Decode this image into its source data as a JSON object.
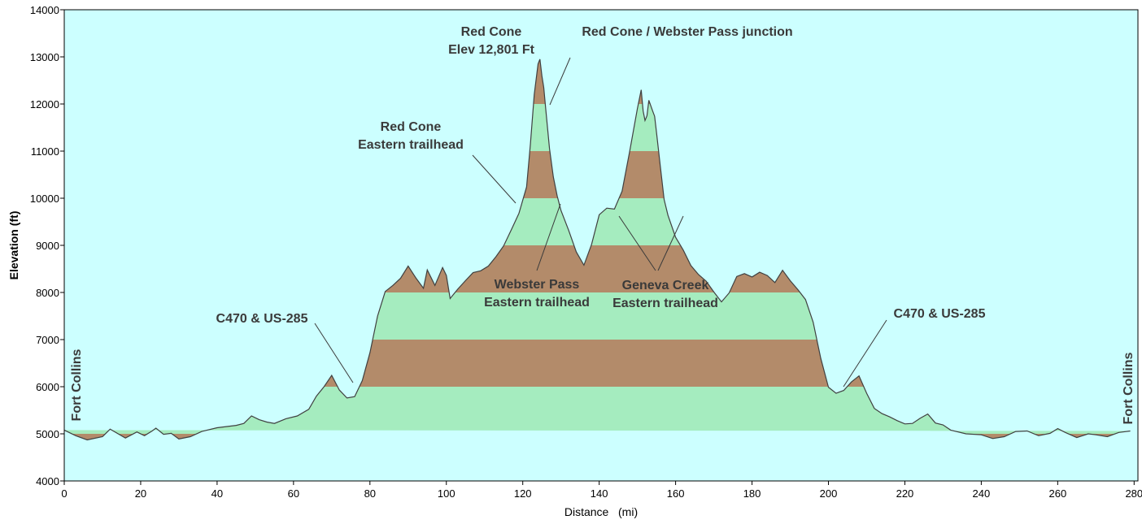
{
  "chart_data": {
    "type": "area",
    "xlabel": "Distance   (mi)",
    "ylabel": "Elevation (ft)",
    "xlim": [
      0,
      281
    ],
    "ylim": [
      4000,
      14000
    ],
    "x_ticks": [
      0,
      20,
      40,
      60,
      80,
      100,
      120,
      140,
      160,
      180,
      200,
      220,
      240,
      260,
      280
    ],
    "y_ticks": [
      4000,
      5000,
      6000,
      7000,
      8000,
      9000,
      10000,
      11000,
      12000,
      13000,
      14000
    ],
    "grid": false,
    "legend": "none",
    "colors": {
      "plot_background": "#ccffff",
      "band_brown": "#b38b6a",
      "band_green": "#a5ecbf",
      "outline": "#404040",
      "annotation_text": "#3a3a3a"
    },
    "band_interval_ft": 1000,
    "profile": {
      "x": [
        0,
        3,
        6,
        10,
        12,
        16,
        19,
        21,
        23,
        24,
        26,
        28,
        30,
        33,
        36,
        40,
        45,
        47,
        49,
        51,
        53,
        55,
        58,
        61,
        64,
        66,
        68,
        70,
        72,
        74,
        76,
        78,
        80,
        82,
        84,
        86,
        88,
        90,
        92,
        94,
        95,
        97,
        99,
        100,
        101,
        103,
        105,
        107,
        109,
        111,
        113,
        115,
        117,
        119,
        121,
        122,
        123,
        124,
        124.5,
        125,
        125.5,
        126,
        127,
        128,
        129,
        130,
        132,
        134,
        136,
        138,
        140,
        142,
        144,
        146,
        148,
        150,
        151,
        151.5,
        152,
        152.5,
        153,
        154,
        154.5,
        155,
        156,
        157,
        158,
        160,
        162,
        164,
        166,
        168,
        170,
        172,
        174,
        176,
        178,
        180,
        182,
        184,
        186,
        188,
        190,
        192,
        194,
        196,
        198,
        200,
        202,
        204,
        206,
        208,
        210,
        212,
        214,
        216,
        218,
        220,
        222,
        224,
        226,
        228,
        230,
        232,
        236,
        240,
        243,
        246,
        249,
        252,
        255,
        258,
        260,
        262,
        265,
        268,
        270,
        273,
        276,
        279,
        281
      ],
      "elevation": [
        5080,
        4960,
        4870,
        4940,
        5100,
        4910,
        5040,
        4960,
        5060,
        5120,
        4990,
        5010,
        4890,
        4940,
        5050,
        5130,
        5180,
        5220,
        5380,
        5300,
        5250,
        5220,
        5320,
        5380,
        5520,
        5800,
        6000,
        6240,
        5930,
        5760,
        5790,
        6130,
        6720,
        7500,
        8020,
        8150,
        8300,
        8560,
        8310,
        8090,
        8480,
        8150,
        8530,
        8360,
        7870,
        8070,
        8250,
        8420,
        8460,
        8560,
        8760,
        8990,
        9330,
        9680,
        10240,
        11150,
        12200,
        12850,
        12950,
        12600,
        12350,
        11900,
        11050,
        10450,
        10050,
        9740,
        9320,
        8860,
        8580,
        9020,
        9650,
        9790,
        9770,
        10150,
        11000,
        11900,
        12300,
        11850,
        11650,
        11750,
        12080,
        11850,
        11740,
        11400,
        10680,
        9970,
        9640,
        9170,
        8900,
        8570,
        8380,
        8240,
        8010,
        7800,
        7990,
        8340,
        8400,
        8330,
        8430,
        8360,
        8210,
        8470,
        8250,
        8060,
        7850,
        7370,
        6600,
        5990,
        5860,
        5920,
        6100,
        6230,
        5860,
        5540,
        5430,
        5360,
        5280,
        5210,
        5220,
        5330,
        5420,
        5230,
        5190,
        5080,
        5000,
        4980,
        4900,
        4940,
        5050,
        5060,
        4960,
        5010,
        5110,
        5030,
        4920,
        5000,
        4980,
        4940,
        5030,
        5060
      ]
    },
    "annotations": [
      {
        "lines": [
          "Red Cone",
          "Elev 12,801 Ft"
        ]
      },
      {
        "lines": [
          "Red Cone / Webster Pass junction"
        ]
      },
      {
        "lines": [
          "Red Cone",
          "Eastern trailhead"
        ]
      },
      {
        "lines": [
          "Webster Pass",
          "Eastern trailhead"
        ]
      },
      {
        "lines": [
          "Geneva Creek",
          "Eastern trailhead"
        ]
      },
      {
        "lines": [
          "C470 & US-285"
        ]
      },
      {
        "lines": [
          "C470 & US-285"
        ]
      },
      {
        "lines": [
          "Fort Collins"
        ]
      },
      {
        "lines": [
          "Fort Collins"
        ]
      }
    ]
  }
}
